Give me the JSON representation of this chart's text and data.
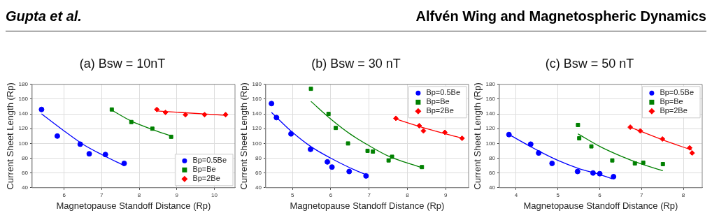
{
  "chart_data": [
    {
      "type": "other",
      "annotations": [
        "Gupta et al.",
        "Alfvén Wing and Magnetospheric Dynamics"
      ]
    },
    {
      "type": "scatter",
      "title": "(a) Bsw = 10nT",
      "xlabel": "Magnetopause Standoff Distance (Rp)",
      "ylabel": "Current Sheet Length (Rp)",
      "xlim": [
        5.15,
        10.55
      ],
      "xticks": [
        6,
        7,
        8,
        9,
        10
      ],
      "ylim": [
        40,
        180
      ],
      "yticks": [
        40,
        60,
        80,
        100,
        120,
        140,
        160,
        180
      ],
      "grid": true,
      "legend": "bottom right",
      "series": [
        {
          "name": "Bp=0.5Be",
          "color": "#0000ff",
          "marker": "circle",
          "x": [
            5.4,
            5.82,
            6.43,
            6.67,
            7.1,
            7.6
          ],
          "values": [
            146,
            110,
            99,
            86,
            85,
            73
          ]
        },
        {
          "name": "Bp=Be",
          "color": "#008000",
          "marker": "square",
          "x": [
            7.27,
            7.79,
            8.35,
            8.85
          ],
          "values": [
            146,
            129,
            120,
            109
          ]
        },
        {
          "name": "Bp=2Be",
          "color": "#ff0000",
          "marker": "diamond",
          "x": [
            8.47,
            8.7,
            9.23,
            9.74,
            10.3
          ],
          "values": [
            146,
            142,
            139,
            139,
            139
          ]
        },
        {
          "type": "line",
          "color": "#0000ff",
          "x": [
            5.4,
            6,
            6.5,
            7,
            7.6
          ],
          "values": [
            140,
            117,
            99,
            85,
            70
          ]
        },
        {
          "type": "line",
          "color": "#008000",
          "x": [
            7.27,
            7.8,
            8.35,
            8.85
          ],
          "values": [
            145,
            130,
            119,
            110
          ]
        },
        {
          "type": "line",
          "color": "#ff0000",
          "x": [
            8.47,
            10.3
          ],
          "values": [
            144,
            138
          ]
        }
      ]
    },
    {
      "type": "scatter",
      "title": "(b) Bsw = 30 nT",
      "xlabel": "Magnetopause Standoff Distance (Rp)",
      "ylabel": "Current Sheet Length (Rp)",
      "xlim": [
        4.3,
        9.6
      ],
      "xticks": [
        5,
        6,
        7,
        8,
        9
      ],
      "ylim": [
        40,
        180
      ],
      "yticks": [
        40,
        60,
        80,
        100,
        120,
        140,
        160,
        180
      ],
      "grid": true,
      "legend": "top right",
      "series": [
        {
          "name": "Bp=0.5Be",
          "color": "#0000ff",
          "marker": "circle",
          "x": [
            4.45,
            4.58,
            4.96,
            5.47,
            5.91,
            6.03,
            6.48,
            6.92
          ],
          "values": [
            154,
            135,
            113,
            92,
            75,
            68,
            62,
            56
          ]
        },
        {
          "name": "Bp=Be",
          "color": "#008000",
          "marker": "square",
          "x": [
            5.48,
            5.94,
            6.13,
            6.45,
            6.96,
            7.1,
            7.51,
            7.6,
            8.38
          ],
          "values": [
            174,
            140,
            121,
            100,
            90,
            89,
            77,
            82,
            68
          ]
        },
        {
          "name": "Bp=2Be",
          "color": "#ff0000",
          "marker": "diamond",
          "x": [
            7.7,
            8.31,
            8.42,
            8.98,
            9.43
          ],
          "values": [
            134,
            124,
            117,
            115,
            107
          ]
        },
        {
          "type": "line",
          "color": "#0000ff",
          "x": [
            4.45,
            5,
            5.5,
            6,
            6.5,
            6.9
          ],
          "values": [
            142,
            115,
            95,
            80,
            67,
            58
          ]
        },
        {
          "type": "line",
          "color": "#008000",
          "x": [
            5.48,
            6,
            6.5,
            7,
            7.5,
            8.38
          ],
          "values": [
            157,
            133,
            113,
            97,
            83,
            67
          ]
        },
        {
          "type": "line",
          "color": "#ff0000",
          "x": [
            7.7,
            8.5,
            9.43
          ],
          "values": [
            133,
            120,
            107
          ]
        }
      ]
    },
    {
      "type": "scatter",
      "title": "(c) Bsw = 50 nT",
      "xlabel": "Magnetopause Standoff Distance (Rp)",
      "ylabel": "Current Sheet Length (Rp)",
      "xlim": [
        3.6,
        8.45
      ],
      "xticks": [
        4,
        5,
        6,
        7,
        8
      ],
      "ylim": [
        40,
        180
      ],
      "yticks": [
        40,
        60,
        80,
        100,
        120,
        140,
        160,
        180
      ],
      "grid": true,
      "legend": "top right",
      "series": [
        {
          "name": "Bp=0.5Be",
          "color": "#0000ff",
          "marker": "circle",
          "x": [
            3.83,
            4.35,
            4.54,
            4.86,
            5.47,
            5.84,
            6.0,
            6.33
          ],
          "values": [
            112,
            99,
            87,
            73,
            62,
            60,
            59,
            55
          ]
        },
        {
          "name": "Bp=Be",
          "color": "#008000",
          "marker": "square",
          "x": [
            5.48,
            5.51,
            5.8,
            6.3,
            6.84,
            7.04,
            7.51
          ],
          "values": [
            125,
            107,
            96,
            77,
            73,
            74,
            72
          ]
        },
        {
          "name": "Bp=2Be",
          "color": "#ff0000",
          "marker": "diamond",
          "x": [
            6.73,
            6.97,
            7.5,
            8.15,
            8.21
          ],
          "values": [
            122,
            117,
            106,
            94,
            87
          ]
        },
        {
          "type": "line",
          "color": "#0000ff",
          "x": [
            3.83,
            4.5,
            5,
            5.5,
            6,
            6.3
          ],
          "values": [
            112,
            91,
            77,
            66,
            58,
            52
          ]
        },
        {
          "type": "line",
          "color": "#008000",
          "x": [
            5.48,
            6,
            6.5,
            7,
            7.51
          ],
          "values": [
            113,
            96,
            83,
            72,
            63
          ]
        },
        {
          "type": "line",
          "color": "#ff0000",
          "x": [
            6.73,
            7.5,
            8.2
          ],
          "values": [
            122,
            105,
            91
          ]
        }
      ]
    }
  ]
}
